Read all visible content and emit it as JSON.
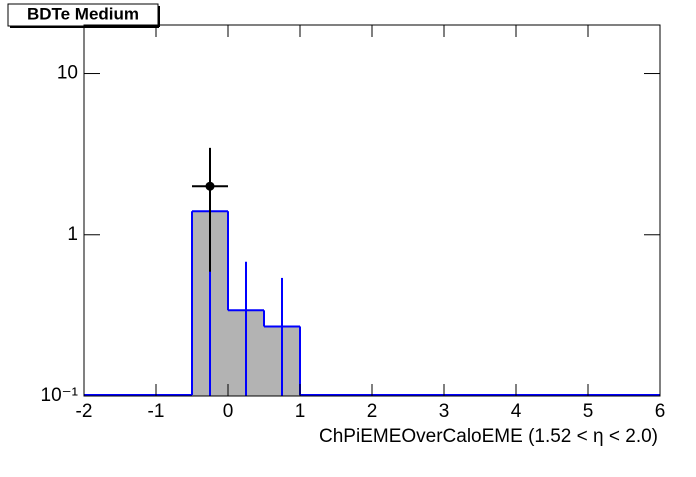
{
  "chart_data": {
    "type": "histogram",
    "title": "BDTe Medium",
    "xlabel": "ChPiEMEOverCaloEME (1.52 <   η < 2.0)",
    "bins": [
      -2,
      -1.5,
      -1,
      -0.5,
      0,
      0.5,
      1,
      1.5,
      2,
      2.5,
      3,
      3.5,
      4,
      4.5,
      5,
      5.5,
      6
    ],
    "values": [
      0,
      0,
      0,
      1.4,
      0.34,
      0.27,
      0,
      0,
      0,
      0,
      0,
      0,
      0,
      0,
      0,
      0
    ],
    "errors": [
      0,
      0,
      0,
      1.4,
      0.34,
      0.27,
      0,
      0,
      0,
      0,
      0,
      0,
      0,
      0,
      0,
      0
    ],
    "color": "#0000ff",
    "fill": "#b3b3b3",
    "points": {
      "color": "#000000",
      "x": [
        -0.25
      ],
      "y": [
        2
      ],
      "xerr": [
        0.25
      ],
      "yerr_low": [
        1.41
      ],
      "yerr_high": [
        1.46
      ]
    },
    "xlim": [
      -2,
      6
    ],
    "xticks": [
      -2,
      -1,
      0,
      1,
      2,
      3,
      4,
      5,
      6
    ],
    "ylim": [
      0.1,
      20
    ],
    "log_y": true,
    "yticks": [
      {
        "value": 0.1,
        "label": "10⁻¹"
      },
      1,
      10
    ]
  }
}
